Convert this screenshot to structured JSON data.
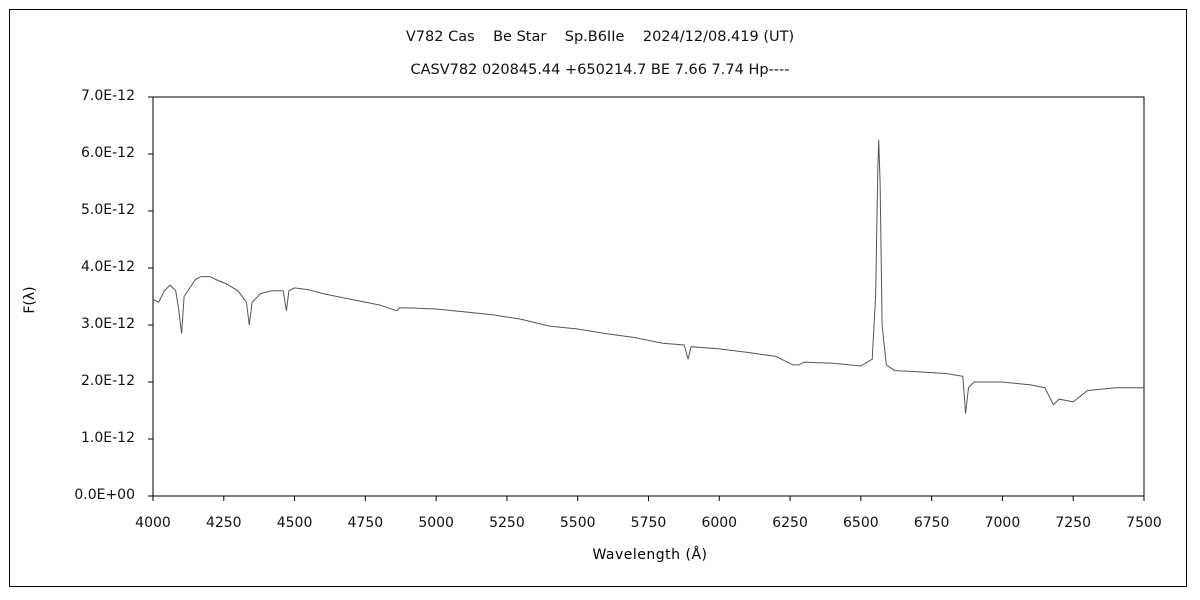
{
  "chart_data": {
    "type": "line",
    "title": "V782 Cas    Be Star    Sp.B6IIe    2024/12/08.419 (UT)",
    "subtitle": "CASV782 020845.44 +650214.7 BE 7.66 7.74 Hp----",
    "xlabel": "Wavelength (Å)",
    "ylabel": "F(λ)",
    "xlim": [
      4000,
      7500
    ],
    "ylim": [
      0,
      7e-12
    ],
    "grid": false,
    "xticks": [
      4000,
      4250,
      4500,
      4750,
      5000,
      5250,
      5500,
      5750,
      6000,
      6250,
      6500,
      6750,
      7000,
      7250,
      7500
    ],
    "xtick_labels": [
      "4000",
      "4250",
      "4500",
      "4750",
      "5000",
      "5250",
      "5500",
      "5750",
      "6000",
      "6250",
      "6500",
      "6750",
      "7000",
      "7250",
      "7500"
    ],
    "yticks": [
      0,
      1e-12,
      2e-12,
      3e-12,
      4e-12,
      5e-12,
      6e-12,
      7e-12
    ],
    "ytick_labels": [
      "0.0E+00",
      "1.0E-12",
      "2.0E-12",
      "3.0E-12",
      "4.0E-12",
      "5.0E-12",
      "6.0E-12",
      "7.0E-12"
    ],
    "series": [
      {
        "color": "#555555",
        "x": [
          4000,
          4020,
          4040,
          4060,
          4080,
          4090,
          4101,
          4110,
          4130,
          4150,
          4170,
          4200,
          4230,
          4260,
          4300,
          4330,
          4340,
          4350,
          4380,
          4420,
          4460,
          4471,
          4480,
          4500,
          4550,
          4600,
          4700,
          4800,
          4861,
          4870,
          4900,
          5000,
          5100,
          5200,
          5300,
          5400,
          5500,
          5600,
          5700,
          5800,
          5876,
          5890,
          5900,
          6000,
          6100,
          6200,
          6260,
          6280,
          6300,
          6400,
          6500,
          6540,
          6552,
          6560,
          6563,
          6568,
          6575,
          6590,
          6620,
          6700,
          6800,
          6860,
          6870,
          6880,
          6900,
          7000,
          7100,
          7150,
          7180,
          7200,
          7250,
          7300,
          7400,
          7500
        ],
        "y": [
          3.45e-12,
          3.4e-12,
          3.6e-12,
          3.7e-12,
          3.6e-12,
          3.3e-12,
          2.85e-12,
          3.5e-12,
          3.65e-12,
          3.8e-12,
          3.85e-12,
          3.85e-12,
          3.78e-12,
          3.72e-12,
          3.6e-12,
          3.4e-12,
          3e-12,
          3.4e-12,
          3.55e-12,
          3.6e-12,
          3.6e-12,
          3.25e-12,
          3.6e-12,
          3.65e-12,
          3.62e-12,
          3.55e-12,
          3.45e-12,
          3.35e-12,
          3.25e-12,
          3.3e-12,
          3.3e-12,
          3.28e-12,
          3.23e-12,
          3.18e-12,
          3.1e-12,
          2.98e-12,
          2.93e-12,
          2.85e-12,
          2.78e-12,
          2.68e-12,
          2.65e-12,
          2.4e-12,
          2.62e-12,
          2.58e-12,
          2.52e-12,
          2.45e-12,
          2.3e-12,
          2.3e-12,
          2.35e-12,
          2.33e-12,
          2.28e-12,
          2.4e-12,
          3.5e-12,
          5.7e-12,
          6.25e-12,
          5.5e-12,
          3e-12,
          2.3e-12,
          2.2e-12,
          2.18e-12,
          2.15e-12,
          2.1e-12,
          1.45e-12,
          1.9e-12,
          2e-12,
          2e-12,
          1.95e-12,
          1.9e-12,
          1.6e-12,
          1.7e-12,
          1.65e-12,
          1.85e-12,
          1.9e-12,
          1.9e-12
        ]
      }
    ]
  }
}
